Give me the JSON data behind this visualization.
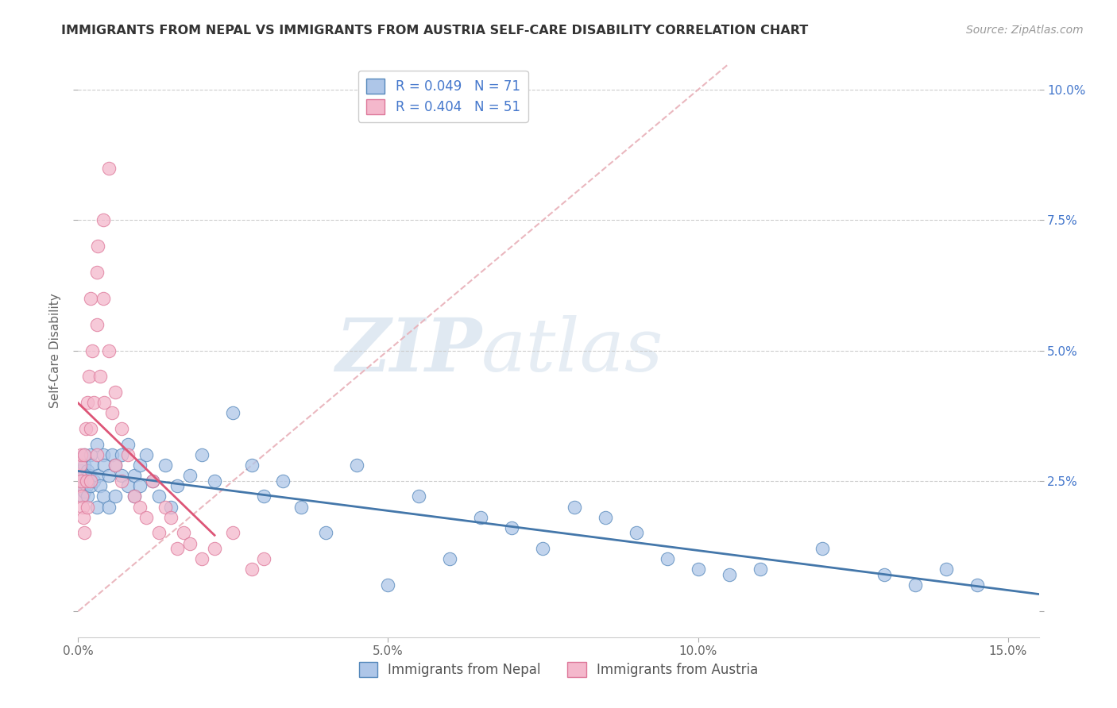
{
  "title": "IMMIGRANTS FROM NEPAL VS IMMIGRANTS FROM AUSTRIA SELF-CARE DISABILITY CORRELATION CHART",
  "source": "Source: ZipAtlas.com",
  "ylabel": "Self-Care Disability",
  "xlim": [
    0.0,
    0.155
  ],
  "ylim": [
    -0.005,
    0.105
  ],
  "nepal_color": "#aec6e8",
  "austria_color": "#f4b8cc",
  "nepal_edge": "#5588bb",
  "austria_edge": "#dd7799",
  "nepal_line_color": "#4477aa",
  "austria_line_color": "#dd5577",
  "diagonal_color": "#e8b0b8",
  "nepal_R": 0.049,
  "nepal_N": 71,
  "austria_R": 0.404,
  "austria_N": 51,
  "watermark_zip": "ZIP",
  "watermark_atlas": "atlas",
  "watermark_color_zip": "#c8d8e8",
  "watermark_color_atlas": "#c8d8e8",
  "legend_nepal": "Immigrants from Nepal",
  "legend_austria": "Immigrants from Austria",
  "right_axis_color": "#4477cc",
  "nepal_x": [
    0.0002,
    0.0003,
    0.0005,
    0.0007,
    0.0008,
    0.001,
    0.001,
    0.001,
    0.0012,
    0.0013,
    0.0015,
    0.0015,
    0.0018,
    0.002,
    0.002,
    0.0022,
    0.0025,
    0.003,
    0.003,
    0.0032,
    0.0035,
    0.004,
    0.004,
    0.0042,
    0.005,
    0.005,
    0.0055,
    0.006,
    0.006,
    0.007,
    0.007,
    0.008,
    0.008,
    0.009,
    0.009,
    0.01,
    0.01,
    0.011,
    0.012,
    0.013,
    0.014,
    0.015,
    0.016,
    0.018,
    0.02,
    0.022,
    0.025,
    0.028,
    0.03,
    0.033,
    0.036,
    0.04,
    0.045,
    0.05,
    0.055,
    0.06,
    0.065,
    0.07,
    0.075,
    0.08,
    0.085,
    0.09,
    0.095,
    0.1,
    0.105,
    0.11,
    0.12,
    0.13,
    0.135,
    0.14,
    0.145
  ],
  "nepal_y": [
    0.025,
    0.024,
    0.027,
    0.022,
    0.026,
    0.028,
    0.023,
    0.03,
    0.025,
    0.024,
    0.027,
    0.022,
    0.026,
    0.03,
    0.024,
    0.028,
    0.025,
    0.032,
    0.02,
    0.026,
    0.024,
    0.03,
    0.022,
    0.028,
    0.026,
    0.02,
    0.03,
    0.028,
    0.022,
    0.03,
    0.026,
    0.032,
    0.024,
    0.026,
    0.022,
    0.028,
    0.024,
    0.03,
    0.025,
    0.022,
    0.028,
    0.02,
    0.024,
    0.026,
    0.03,
    0.025,
    0.038,
    0.028,
    0.022,
    0.025,
    0.02,
    0.015,
    0.028,
    0.005,
    0.022,
    0.01,
    0.018,
    0.016,
    0.012,
    0.02,
    0.018,
    0.015,
    0.01,
    0.008,
    0.007,
    0.008,
    0.012,
    0.007,
    0.005,
    0.008,
    0.005
  ],
  "austria_x": [
    0.0001,
    0.0002,
    0.0003,
    0.0004,
    0.0005,
    0.0006,
    0.0007,
    0.0008,
    0.001,
    0.001,
    0.0012,
    0.0013,
    0.0015,
    0.0015,
    0.0018,
    0.002,
    0.002,
    0.002,
    0.0022,
    0.0025,
    0.003,
    0.003,
    0.003,
    0.0032,
    0.0035,
    0.004,
    0.004,
    0.0042,
    0.005,
    0.005,
    0.0055,
    0.006,
    0.006,
    0.007,
    0.007,
    0.008,
    0.009,
    0.01,
    0.011,
    0.012,
    0.013,
    0.014,
    0.015,
    0.016,
    0.017,
    0.018,
    0.02,
    0.022,
    0.025,
    0.028,
    0.03
  ],
  "austria_y": [
    0.024,
    0.026,
    0.028,
    0.03,
    0.025,
    0.022,
    0.02,
    0.018,
    0.03,
    0.015,
    0.035,
    0.025,
    0.04,
    0.02,
    0.045,
    0.035,
    0.025,
    0.06,
    0.05,
    0.04,
    0.055,
    0.065,
    0.03,
    0.07,
    0.045,
    0.075,
    0.06,
    0.04,
    0.085,
    0.05,
    0.038,
    0.042,
    0.028,
    0.035,
    0.025,
    0.03,
    0.022,
    0.02,
    0.018,
    0.025,
    0.015,
    0.02,
    0.018,
    0.012,
    0.015,
    0.013,
    0.01,
    0.012,
    0.015,
    0.008,
    0.01
  ]
}
